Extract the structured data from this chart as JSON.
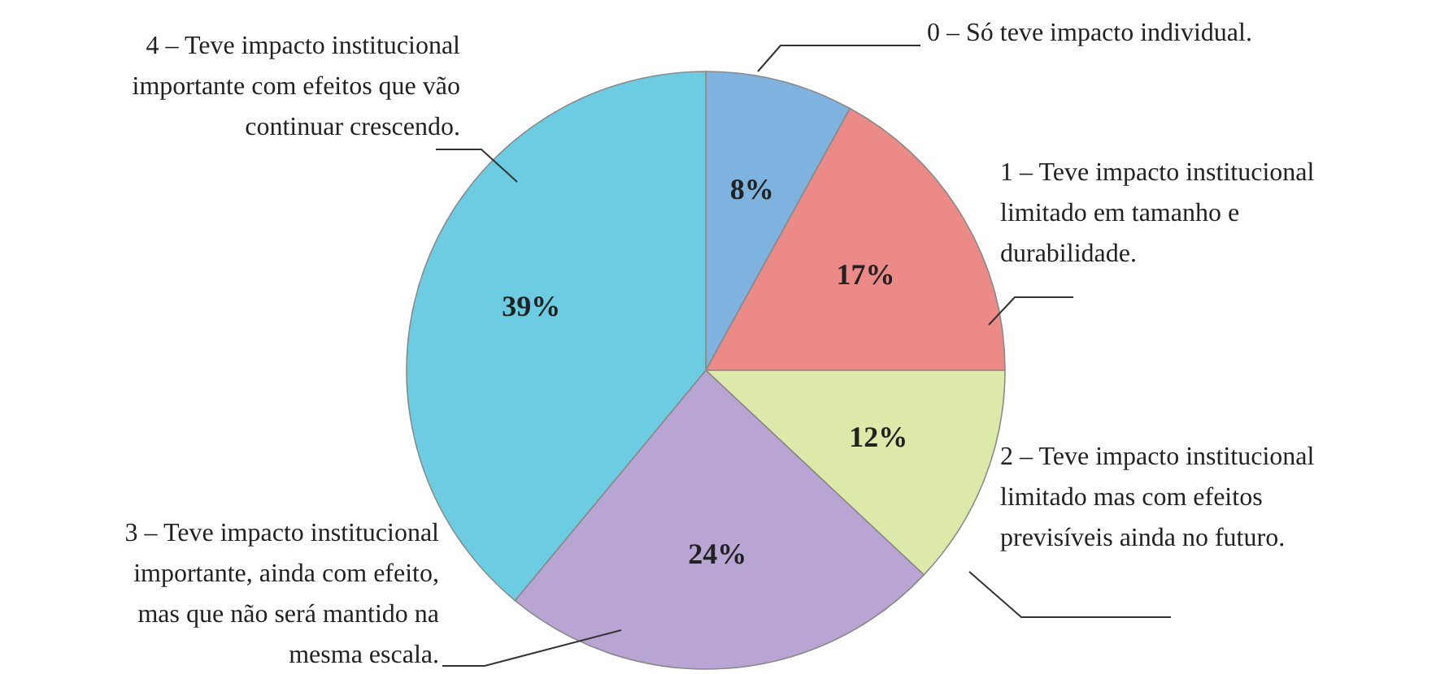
{
  "chart_data": {
    "type": "pie",
    "categories": [
      "0 – Só teve impacto individual.",
      "1 – Teve impacto institucional limitado em tamanho e durabilidade.",
      "2 – Teve impacto institucional limitado mas com efeitos previsíveis ainda no futuro.",
      "3 – Teve impacto institucional importante, ainda com efeito, mas que não será mantido na mesma escala.",
      "4 – Teve impacto institucional importante com efeitos que vão continuar crescendo."
    ],
    "values": [
      8,
      17,
      12,
      24,
      39
    ],
    "value_labels": [
      "8%",
      "17%",
      "12%",
      "24%",
      "39%"
    ],
    "colors": [
      "#7db3de",
      "#eb8a86",
      "#dce9a9",
      "#b9a5d4",
      "#6ccde2"
    ]
  }
}
